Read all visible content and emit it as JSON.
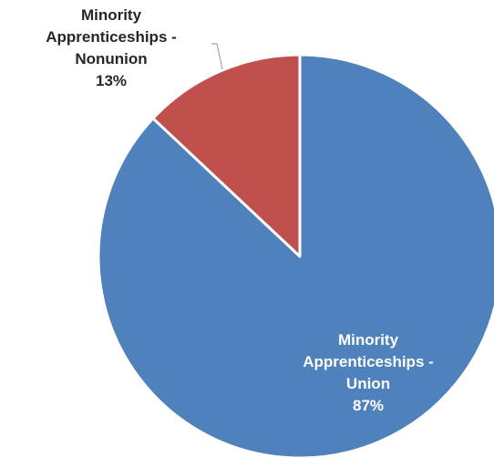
{
  "chart_data": {
    "type": "pie",
    "title": "",
    "slices": [
      {
        "label": "Minority Apprenticeships - Union",
        "value": 87,
        "percent_label": "87%",
        "color": "#4F81BD",
        "label_color": "#ffffff"
      },
      {
        "label": "Minority Apprenticeships - Nonunion",
        "value": 13,
        "percent_label": "13%",
        "color": "#C0504D",
        "label_color": "#262626"
      }
    ],
    "legend": "none",
    "slice_border_color": "#ffffff",
    "leader_line_color": "#A6A6A6"
  }
}
